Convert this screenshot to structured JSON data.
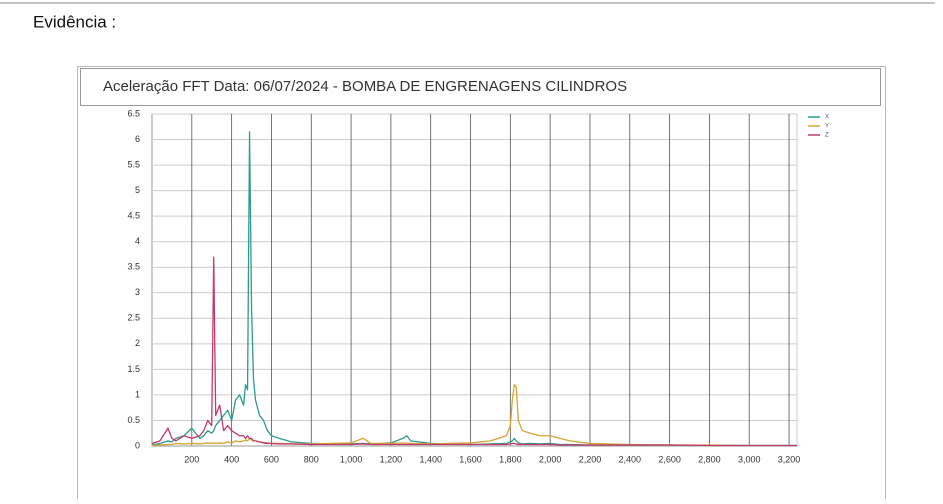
{
  "heading": "Evidência :",
  "chart_data": {
    "type": "line",
    "title": "Aceleração FFT Data: 06/07/2024 - BOMBA DE ENGRENAGENS CILINDROS",
    "x": [
      0,
      40,
      80,
      100,
      120,
      160,
      200,
      240,
      260,
      280,
      300,
      310,
      320,
      340,
      360,
      380,
      400,
      420,
      440,
      460,
      470,
      480,
      490,
      500,
      510,
      520,
      540,
      560,
      580,
      600,
      640,
      700,
      800,
      900,
      1000,
      1060,
      1100,
      1200,
      1260,
      1280,
      1300,
      1400,
      1500,
      1600,
      1700,
      1780,
      1800,
      1810,
      1820,
      1830,
      1840,
      1860,
      1900,
      1950,
      2000,
      2050,
      2100,
      2200,
      2400,
      2600,
      2800,
      3000,
      3200,
      3240
    ],
    "series": [
      {
        "name": "X",
        "color": "#2f9a8c",
        "values": [
          0.02,
          0.05,
          0.1,
          0.08,
          0.15,
          0.2,
          0.35,
          0.15,
          0.2,
          0.3,
          0.25,
          0.3,
          0.4,
          0.5,
          0.6,
          0.7,
          0.5,
          0.9,
          1.0,
          0.8,
          1.2,
          1.1,
          6.15,
          2.7,
          1.3,
          0.9,
          0.6,
          0.5,
          0.3,
          0.2,
          0.15,
          0.08,
          0.05,
          0.04,
          0.04,
          0.05,
          0.04,
          0.06,
          0.15,
          0.2,
          0.1,
          0.05,
          0.04,
          0.03,
          0.04,
          0.05,
          0.08,
          0.1,
          0.15,
          0.1,
          0.06,
          0.04,
          0.05,
          0.04,
          0.05,
          0.03,
          0.03,
          0.02,
          0.02,
          0.02,
          0.01,
          0.01,
          0.01,
          0.01
        ]
      },
      {
        "name": "Y",
        "color": "#d4a533",
        "values": [
          0.01,
          0.02,
          0.03,
          0.03,
          0.05,
          0.04,
          0.05,
          0.04,
          0.05,
          0.06,
          0.05,
          0.06,
          0.05,
          0.06,
          0.05,
          0.08,
          0.06,
          0.1,
          0.08,
          0.1,
          0.12,
          0.1,
          0.15,
          0.12,
          0.1,
          0.1,
          0.08,
          0.07,
          0.06,
          0.05,
          0.05,
          0.04,
          0.04,
          0.05,
          0.06,
          0.15,
          0.05,
          0.05,
          0.06,
          0.05,
          0.05,
          0.04,
          0.05,
          0.06,
          0.1,
          0.2,
          0.4,
          0.9,
          1.2,
          1.15,
          0.5,
          0.3,
          0.25,
          0.2,
          0.2,
          0.15,
          0.1,
          0.05,
          0.03,
          0.02,
          0.02,
          0.01,
          0.01,
          0.01
        ]
      },
      {
        "name": "Z",
        "color": "#c3396f",
        "values": [
          0.05,
          0.1,
          0.35,
          0.15,
          0.1,
          0.2,
          0.15,
          0.2,
          0.3,
          0.5,
          0.4,
          3.7,
          0.6,
          0.8,
          0.3,
          0.4,
          0.3,
          0.25,
          0.2,
          0.2,
          0.15,
          0.2,
          0.15,
          0.15,
          0.1,
          0.1,
          0.08,
          0.06,
          0.05,
          0.05,
          0.04,
          0.04,
          0.03,
          0.03,
          0.03,
          0.04,
          0.03,
          0.03,
          0.03,
          0.03,
          0.03,
          0.03,
          0.03,
          0.03,
          0.03,
          0.03,
          0.04,
          0.05,
          0.05,
          0.04,
          0.03,
          0.03,
          0.03,
          0.03,
          0.03,
          0.02,
          0.02,
          0.02,
          0.02,
          0.02,
          0.01,
          0.01,
          0.01,
          0.01
        ]
      }
    ],
    "xlim": [
      0,
      3240
    ],
    "xticks": [
      200,
      400,
      600,
      800,
      {
        "value": 1000,
        "label": "1,000"
      },
      {
        "value": 1200,
        "label": "1,200"
      },
      {
        "value": 1400,
        "label": "1,400"
      },
      {
        "value": 1600,
        "label": "1,600"
      },
      {
        "value": 1800,
        "label": "1,800"
      },
      {
        "value": 2000,
        "label": "2,000"
      },
      {
        "value": 2200,
        "label": "2,200"
      },
      {
        "value": 2400,
        "label": "2,400"
      },
      {
        "value": 2600,
        "label": "2,600"
      },
      {
        "value": 2800,
        "label": "2,800"
      },
      {
        "value": 3000,
        "label": "3,000"
      },
      {
        "value": 3200,
        "label": "3,200"
      }
    ],
    "ylim": [
      0,
      6.5
    ],
    "yticks": [
      0,
      0.5,
      1,
      1.5,
      2,
      2.5,
      3,
      3.5,
      4,
      4.5,
      5,
      5.5,
      6,
      6.5
    ],
    "grid": true,
    "legend": "top-right"
  }
}
